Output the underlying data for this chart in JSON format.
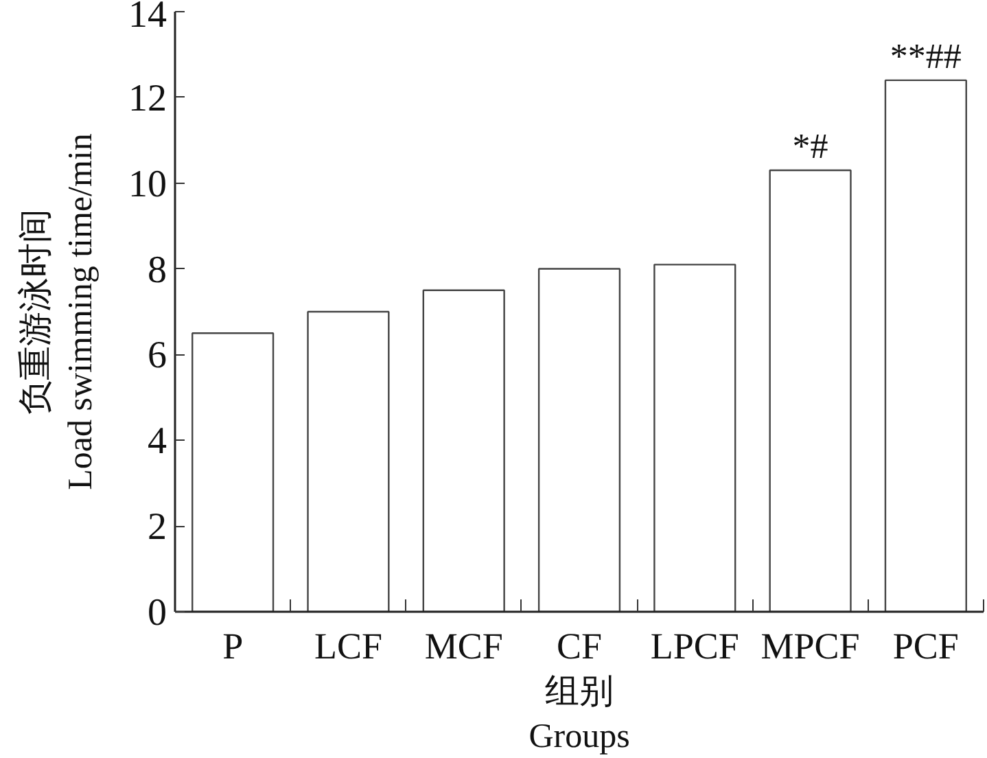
{
  "chart_data": {
    "type": "bar",
    "categories": [
      "P",
      "LCF",
      "MCF",
      "CF",
      "LPCF",
      "MPCF",
      "PCF"
    ],
    "values": [
      6.5,
      7.0,
      7.5,
      8.0,
      8.1,
      10.3,
      12.4
    ],
    "color": "#ffffff",
    "ylim": [
      0,
      14
    ],
    "yticks": [
      0,
      2,
      4,
      6,
      8,
      10,
      12,
      14
    ],
    "xlabel": "组别\nGroups",
    "ylabel": "负重游泳时间\nLoad swimming time/min",
    "annotations": [
      {
        "text": "*#",
        "x": "MPCF",
        "y": 10.3
      },
      {
        "text": "**##",
        "x": "PCF",
        "y": 12.4
      }
    ]
  }
}
